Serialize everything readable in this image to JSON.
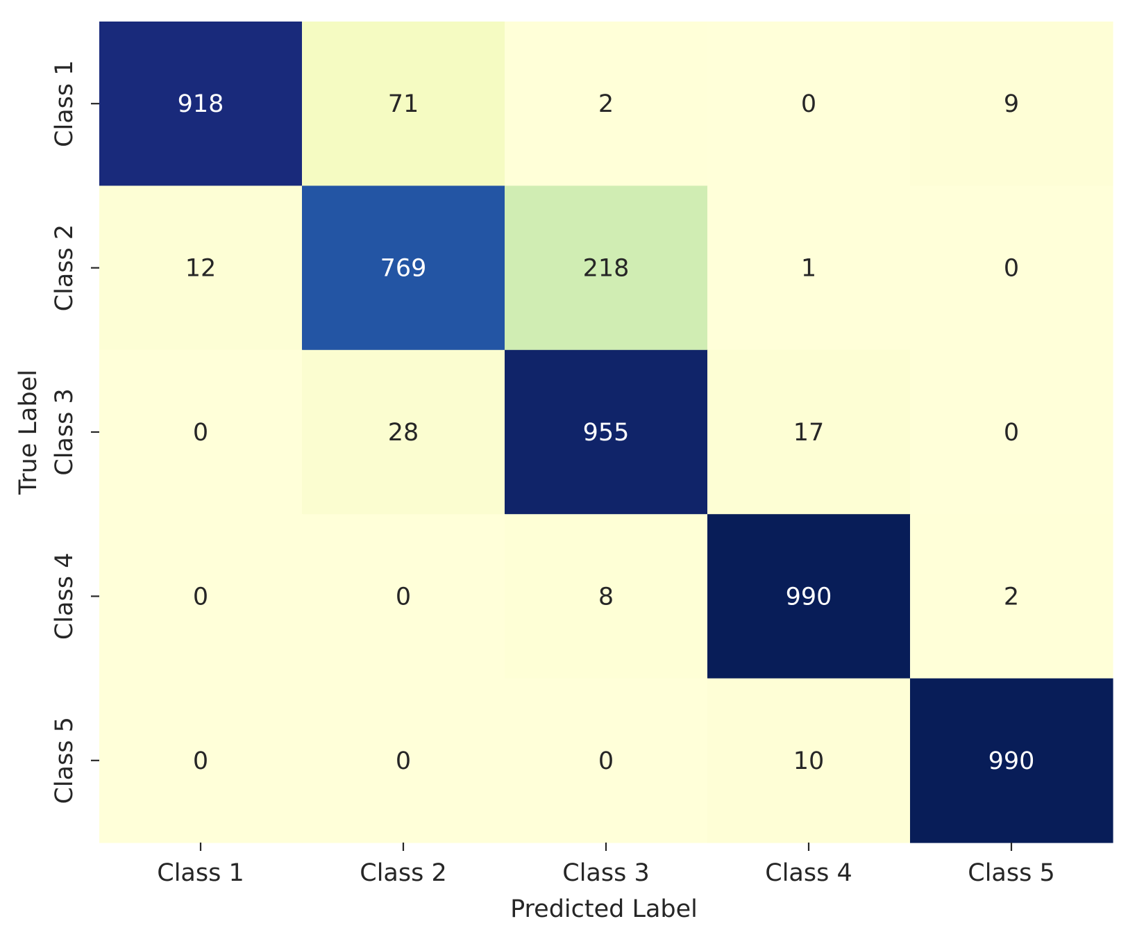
{
  "chart_data": {
    "type": "heatmap",
    "title": "",
    "xlabel": "Predicted Label",
    "ylabel": "True Label",
    "x_categories": [
      "Class 1",
      "Class 2",
      "Class 3",
      "Class 4",
      "Class 5"
    ],
    "y_categories": [
      "Class 1",
      "Class 2",
      "Class 3",
      "Class 4",
      "Class 5"
    ],
    "values": [
      [
        918,
        71,
        2,
        0,
        9
      ],
      [
        12,
        769,
        218,
        1,
        0
      ],
      [
        0,
        28,
        955,
        17,
        0
      ],
      [
        0,
        0,
        8,
        990,
        2
      ],
      [
        0,
        0,
        0,
        10,
        990
      ]
    ],
    "colormap": "YlGnBu",
    "color_range": [
      0,
      990
    ],
    "colorbar": false,
    "grid": false
  }
}
